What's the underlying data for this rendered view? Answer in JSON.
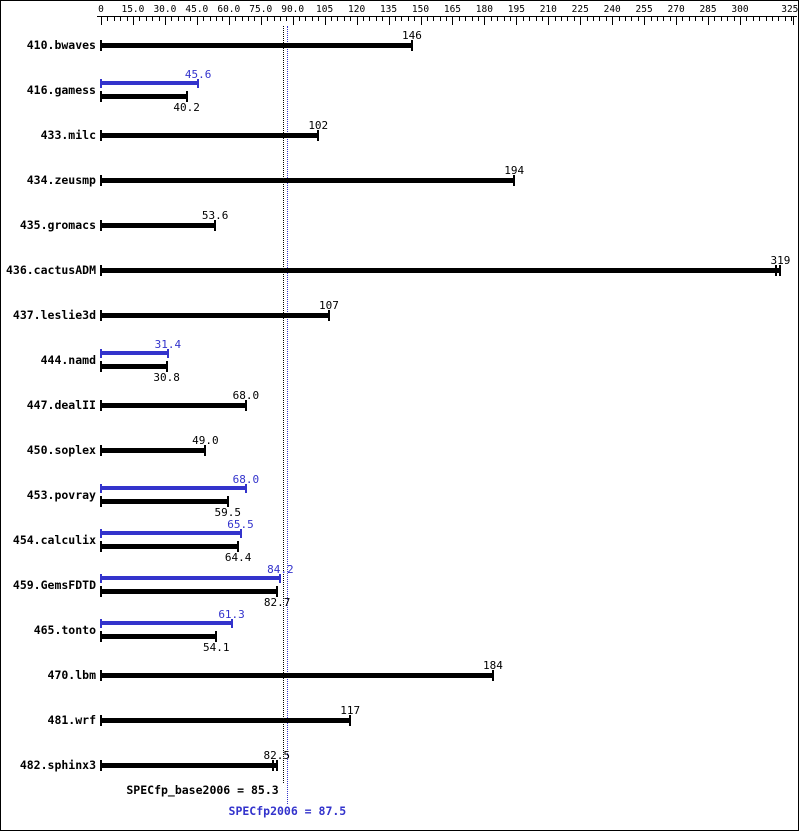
{
  "colors": {
    "base": "#000000",
    "peak": "#3333cc",
    "background": "#ffffff"
  },
  "axis": {
    "ticks": [
      {
        "v": 0,
        "label": "0"
      },
      {
        "v": 15,
        "label": "15.0"
      },
      {
        "v": 30,
        "label": "30.0"
      },
      {
        "v": 45,
        "label": "45.0"
      },
      {
        "v": 60,
        "label": "60.0"
      },
      {
        "v": 75,
        "label": "75.0"
      },
      {
        "v": 90,
        "label": "90.0"
      },
      {
        "v": 105,
        "label": "105"
      },
      {
        "v": 120,
        "label": "120"
      },
      {
        "v": 135,
        "label": "135"
      },
      {
        "v": 150,
        "label": "150"
      },
      {
        "v": 165,
        "label": "165"
      },
      {
        "v": 180,
        "label": "180"
      },
      {
        "v": 195,
        "label": "195"
      },
      {
        "v": 210,
        "label": "210"
      },
      {
        "v": 225,
        "label": "225"
      },
      {
        "v": 240,
        "label": "240"
      },
      {
        "v": 255,
        "label": "255"
      },
      {
        "v": 270,
        "label": "270"
      },
      {
        "v": 285,
        "label": "285"
      },
      {
        "v": 300,
        "label": "300"
      },
      {
        "v": 325,
        "label": "325"
      }
    ],
    "minor_step": 3,
    "max": 325
  },
  "benchmarks": [
    {
      "name": "410.bwaves",
      "base": {
        "value": 146,
        "label": "146"
      },
      "peak": null
    },
    {
      "name": "416.gamess",
      "base": {
        "value": 40.2,
        "label": "40.2"
      },
      "peak": {
        "value": 45.6,
        "label": "45.6"
      }
    },
    {
      "name": "433.milc",
      "base": {
        "value": 102,
        "label": "102"
      },
      "peak": null
    },
    {
      "name": "434.zeusmp",
      "base": {
        "value": 194,
        "label": "194"
      },
      "peak": null
    },
    {
      "name": "435.gromacs",
      "base": {
        "value": 53.6,
        "label": "53.6"
      },
      "peak": null
    },
    {
      "name": "436.cactusADM",
      "base": {
        "value": 319,
        "label": "319"
      },
      "peak": null,
      "double_end_cap": true
    },
    {
      "name": "437.leslie3d",
      "base": {
        "value": 107,
        "label": "107"
      },
      "peak": null
    },
    {
      "name": "444.namd",
      "base": {
        "value": 30.8,
        "label": "30.8"
      },
      "peak": {
        "value": 31.4,
        "label": "31.4"
      }
    },
    {
      "name": "447.dealII",
      "base": {
        "value": 68.0,
        "label": "68.0"
      },
      "peak": null
    },
    {
      "name": "450.soplex",
      "base": {
        "value": 49.0,
        "label": "49.0"
      },
      "peak": null
    },
    {
      "name": "453.povray",
      "base": {
        "value": 59.5,
        "label": "59.5"
      },
      "peak": {
        "value": 68.0,
        "label": "68.0"
      }
    },
    {
      "name": "454.calculix",
      "base": {
        "value": 64.4,
        "label": "64.4"
      },
      "peak": {
        "value": 65.5,
        "label": "65.5"
      }
    },
    {
      "name": "459.GemsFDTD",
      "base": {
        "value": 82.7,
        "label": "82.7"
      },
      "peak": {
        "value": 84.2,
        "label": "84.2"
      }
    },
    {
      "name": "465.tonto",
      "base": {
        "value": 54.1,
        "label": "54.1"
      },
      "peak": {
        "value": 61.3,
        "label": "61.3"
      }
    },
    {
      "name": "470.lbm",
      "base": {
        "value": 184,
        "label": "184"
      },
      "peak": null
    },
    {
      "name": "481.wrf",
      "base": {
        "value": 117,
        "label": "117"
      },
      "peak": null
    },
    {
      "name": "482.sphinx3",
      "base": {
        "value": 82.5,
        "label": "82.5"
      },
      "peak": null,
      "double_end_cap": true
    }
  ],
  "means": {
    "base": {
      "value": 85.3,
      "label": "SPECfp_base2006 = 85.3"
    },
    "peak": {
      "value": 87.5,
      "label": "SPECfp2006 = 87.5"
    }
  },
  "chart_data": {
    "type": "bar",
    "orientation": "horizontal",
    "title": "",
    "categories": [
      "410.bwaves",
      "416.gamess",
      "433.milc",
      "434.zeusmp",
      "435.gromacs",
      "436.cactusADM",
      "437.leslie3d",
      "444.namd",
      "447.dealII",
      "450.soplex",
      "453.povray",
      "454.calculix",
      "459.GemsFDTD",
      "465.tonto",
      "470.lbm",
      "481.wrf",
      "482.sphinx3"
    ],
    "series": [
      {
        "name": "base",
        "color": "#000000",
        "values": [
          146,
          40.2,
          102,
          194,
          53.6,
          319,
          107,
          30.8,
          68.0,
          49.0,
          59.5,
          64.4,
          82.7,
          54.1,
          184,
          117,
          82.5
        ]
      },
      {
        "name": "peak",
        "color": "#3333cc",
        "values": [
          null,
          45.6,
          null,
          null,
          null,
          null,
          null,
          31.4,
          null,
          null,
          68.0,
          65.5,
          84.2,
          61.3,
          null,
          null,
          null
        ]
      }
    ],
    "xlim": [
      0,
      325
    ],
    "x_tick_labels": [
      "0",
      "15.0",
      "30.0",
      "45.0",
      "60.0",
      "75.0",
      "90.0",
      "105",
      "120",
      "135",
      "150",
      "165",
      "180",
      "195",
      "210",
      "225",
      "240",
      "255",
      "270",
      "285",
      "300",
      "325"
    ],
    "grid": false,
    "legend": "none",
    "annotations": [
      {
        "text": "SPECfp_base2006 = 85.3",
        "value": 85.3,
        "style": "dotted-vline",
        "color": "#000000"
      },
      {
        "text": "SPECfp2006 = 87.5",
        "value": 87.5,
        "style": "dotted-vline",
        "color": "#3333cc"
      }
    ]
  }
}
